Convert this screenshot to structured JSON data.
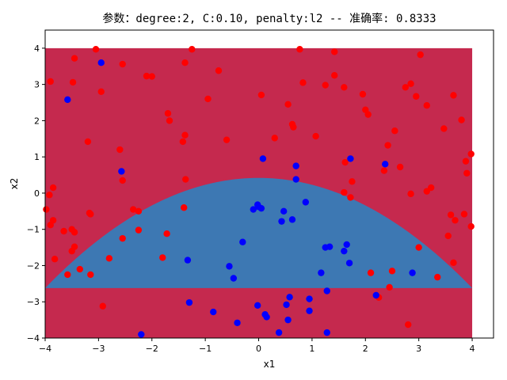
{
  "chart_data": {
    "type": "scatter",
    "title": "参数：degree:2, C:0.10, penalty:l2 -- 准确率: 0.8333",
    "xlabel": "x1",
    "ylabel": "x2",
    "xlim": [
      -4,
      4.4
    ],
    "ylim": [
      -4,
      4.5
    ],
    "grid": false,
    "x_ticks": [
      -4,
      -3,
      -2,
      -1,
      0,
      1,
      2,
      3,
      4
    ],
    "y_ticks": [
      -4,
      -3,
      -2,
      -1,
      0,
      1,
      2,
      3,
      4
    ],
    "decision_regions": {
      "x_range": [
        -4,
        4
      ],
      "y_range": [
        -4,
        4
      ],
      "boundary_vertex": [
        0,
        0.42
      ],
      "boundary_curvature": 0.19,
      "outer_color": "#c5294e",
      "inner_color": "#3d78b3"
    },
    "series": [
      {
        "color": "#ff0000",
        "points": [
          [
            -3.05,
            3.97
          ],
          [
            -1.25,
            3.97
          ],
          [
            0.77,
            3.97
          ],
          [
            1.42,
            3.9
          ],
          [
            -3.45,
            3.72
          ],
          [
            3.03,
            3.82
          ],
          [
            -2.55,
            3.56
          ],
          [
            -1.38,
            3.6
          ],
          [
            -3.9,
            3.08
          ],
          [
            -3.48,
            3.06
          ],
          [
            -2.95,
            2.8
          ],
          [
            -2.1,
            3.23
          ],
          [
            -2.0,
            3.22
          ],
          [
            -0.75,
            3.38
          ],
          [
            0.05,
            2.71
          ],
          [
            -0.95,
            2.6
          ],
          [
            0.55,
            2.45
          ],
          [
            0.83,
            3.05
          ],
          [
            1.25,
            2.98
          ],
          [
            1.42,
            3.25
          ],
          [
            1.6,
            2.92
          ],
          [
            1.95,
            2.73
          ],
          [
            2.75,
            2.92
          ],
          [
            2.85,
            3.02
          ],
          [
            2.95,
            2.67
          ],
          [
            3.15,
            2.42
          ],
          [
            3.65,
            2.7
          ],
          [
            -1.7,
            2.2
          ],
          [
            -1.67,
            2.0
          ],
          [
            0.63,
            1.9
          ],
          [
            0.65,
            1.82
          ],
          [
            2.0,
            2.3
          ],
          [
            2.05,
            2.17
          ],
          [
            2.55,
            1.72
          ],
          [
            3.47,
            1.78
          ],
          [
            3.8,
            2.02
          ],
          [
            -3.2,
            1.42
          ],
          [
            -2.6,
            1.2
          ],
          [
            -1.42,
            1.42
          ],
          [
            -1.38,
            1.6
          ],
          [
            -0.6,
            1.47
          ],
          [
            0.3,
            1.52
          ],
          [
            1.07,
            1.57
          ],
          [
            2.42,
            1.32
          ],
          [
            3.88,
            0.88
          ],
          [
            3.98,
            1.08
          ],
          [
            -3.85,
            0.15
          ],
          [
            -3.92,
            -0.05
          ],
          [
            -2.55,
            0.35
          ],
          [
            -1.37,
            0.38
          ],
          [
            1.62,
            0.85
          ],
          [
            2.35,
            0.62
          ],
          [
            2.65,
            0.72
          ],
          [
            3.15,
            0.05
          ],
          [
            3.23,
            0.15
          ],
          [
            3.9,
            0.55
          ],
          [
            1.75,
            0.32
          ],
          [
            2.85,
            -0.02
          ],
          [
            1.6,
            0.02
          ],
          [
            1.72,
            -0.12
          ],
          [
            -3.98,
            -0.45
          ],
          [
            -3.9,
            -0.88
          ],
          [
            -3.65,
            -1.05
          ],
          [
            -3.85,
            -0.75
          ],
          [
            -3.17,
            -0.55
          ],
          [
            -3.15,
            -0.58
          ],
          [
            -2.35,
            -0.45
          ],
          [
            -2.25,
            -0.5
          ],
          [
            -2.25,
            -1.02
          ],
          [
            -1.4,
            -0.4
          ],
          [
            -1.72,
            -1.12
          ],
          [
            -3.5,
            -1.0
          ],
          [
            -3.45,
            -1.08
          ],
          [
            -3.45,
            -1.48
          ],
          [
            -3.5,
            -1.6
          ],
          [
            -2.55,
            -1.25
          ],
          [
            -3.82,
            -1.82
          ],
          [
            -2.8,
            -1.8
          ],
          [
            -1.8,
            -1.78
          ],
          [
            -3.58,
            -2.25
          ],
          [
            -3.35,
            -2.1
          ],
          [
            -3.15,
            -2.25
          ],
          [
            3.6,
            -0.6
          ],
          [
            3.68,
            -0.75
          ],
          [
            3.85,
            -0.58
          ],
          [
            3.98,
            -0.92
          ],
          [
            3.55,
            -1.18
          ],
          [
            3.0,
            -1.5
          ],
          [
            3.65,
            -1.92
          ],
          [
            3.35,
            -2.32
          ],
          [
            2.1,
            -2.2
          ],
          [
            2.5,
            -2.15
          ],
          [
            2.45,
            -2.6
          ],
          [
            2.25,
            -2.88
          ],
          [
            -2.92,
            -3.12
          ],
          [
            2.8,
            -3.63
          ]
        ]
      },
      {
        "color": "#0000ff",
        "points": [
          [
            -2.95,
            3.6
          ],
          [
            -3.58,
            2.58
          ],
          [
            -2.57,
            0.6
          ],
          [
            0.08,
            0.95
          ],
          [
            0.7,
            0.75
          ],
          [
            1.72,
            0.95
          ],
          [
            2.37,
            0.8
          ],
          [
            0.7,
            0.38
          ],
          [
            -0.1,
            -0.45
          ],
          [
            0.0,
            -0.38
          ],
          [
            -0.02,
            -0.32
          ],
          [
            0.05,
            -0.42
          ],
          [
            0.47,
            -0.5
          ],
          [
            0.88,
            -0.25
          ],
          [
            0.43,
            -0.78
          ],
          [
            0.63,
            -0.73
          ],
          [
            -0.3,
            -1.35
          ],
          [
            -1.33,
            -1.85
          ],
          [
            -0.55,
            -2.02
          ],
          [
            -0.47,
            -2.35
          ],
          [
            1.65,
            -1.42
          ],
          [
            1.25,
            -1.5
          ],
          [
            1.33,
            -1.48
          ],
          [
            1.6,
            -1.6
          ],
          [
            1.7,
            -1.93
          ],
          [
            1.17,
            -2.2
          ],
          [
            2.88,
            -2.2
          ],
          [
            -1.3,
            -3.02
          ],
          [
            -0.85,
            -3.28
          ],
          [
            -0.02,
            -3.1
          ],
          [
            0.52,
            -3.08
          ],
          [
            0.58,
            -2.87
          ],
          [
            0.95,
            -2.92
          ],
          [
            1.28,
            -2.7
          ],
          [
            2.2,
            -2.82
          ],
          [
            0.95,
            -3.25
          ],
          [
            0.12,
            -3.35
          ],
          [
            0.15,
            -3.42
          ],
          [
            0.55,
            -3.5
          ],
          [
            -0.4,
            -3.58
          ],
          [
            -2.2,
            -3.9
          ],
          [
            0.38,
            -3.85
          ],
          [
            1.28,
            -3.85
          ]
        ]
      }
    ]
  }
}
